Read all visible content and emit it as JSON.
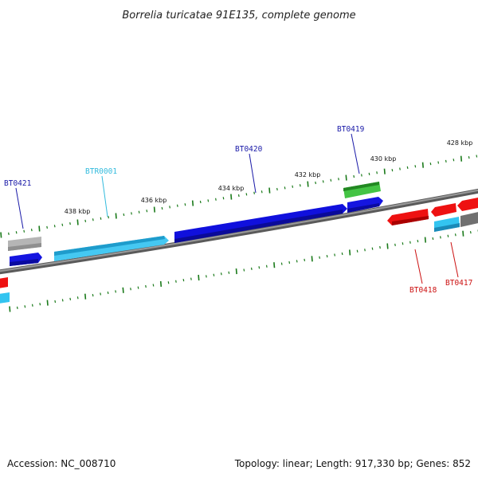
{
  "title": "Borrelia turicatae 91E135, complete genome",
  "footer": {
    "accession": "Accession: NC_008710",
    "summary": "Topology: linear; Length: 917,330 bp; Genes: 852"
  },
  "scale_labels": [
    "428 kbp",
    "430 kbp",
    "432 kbp",
    "434 kbp",
    "436 kbp",
    "438 kbp"
  ],
  "gene_labels": [
    {
      "id": "BT0421",
      "color": "#1a1aa8"
    },
    {
      "id": "BTR0001",
      "color": "#33bbdd"
    },
    {
      "id": "BT0420",
      "color": "#1a1aa8"
    },
    {
      "id": "BT0419",
      "color": "#1a1aa8"
    },
    {
      "id": "BT0418",
      "color": "#cc1111"
    },
    {
      "id": "BT0417",
      "color": "#cc1111"
    }
  ],
  "colors": {
    "forward_gene": "#1010dd",
    "reverse_gene": "#ee1111",
    "rna_gene": "#33c4f0",
    "other_gene": "#44c444",
    "pseudo_gene": "#aaaaaa",
    "dark_gene": "#666666",
    "backbone": "#888888",
    "ticks": "#1a7a1a"
  }
}
